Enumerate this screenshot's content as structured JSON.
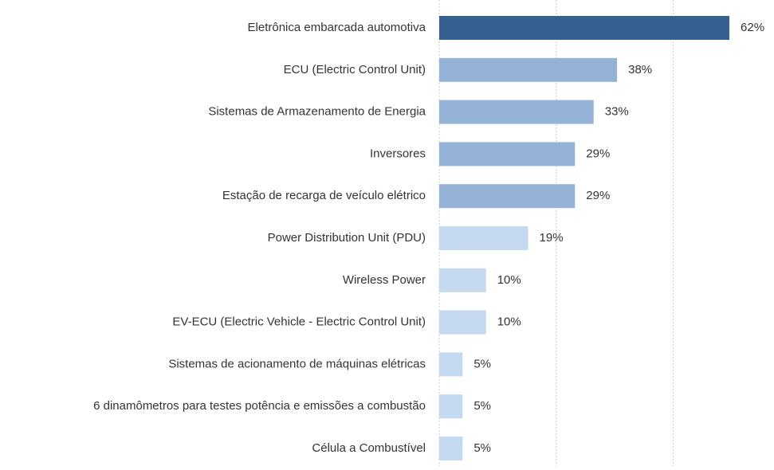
{
  "chart_data": {
    "type": "barh",
    "categories": [
      "Eletrônica embarcada automotiva",
      "ECU (Electric Control Unit)",
      "Sistemas de Armazenamento de Energia",
      "Inversores",
      "Estação de recarga de veículo elétrico",
      "Power Distribution Unit (PDU)",
      "Wireless Power",
      "EV-ECU (Electric Vehicle - Electric Control Unit)",
      "Sistemas de acionamento de máquinas elétricas",
      "6 dinamômetros para testes potência e emissões a combustão",
      "Célula a Combustível"
    ],
    "values": [
      62,
      38,
      33,
      29,
      29,
      19,
      10,
      10,
      5,
      5,
      5
    ],
    "value_labels": [
      "62%",
      "38%",
      "33%",
      "29%",
      "29%",
      "19%",
      "10%",
      "10%",
      "5%",
      "5%",
      "5%"
    ],
    "colors": [
      "#366092",
      "#95b3d7",
      "#95b3d7",
      "#95b3d7",
      "#95b3d7",
      "#c5d9f1",
      "#c5d9f1",
      "#c5d9f1",
      "#c5d9f1",
      "#c5d9f1",
      "#c5d9f1"
    ],
    "xlim": [
      0,
      70
    ],
    "xticks": [
      0,
      25,
      50
    ],
    "grid": true
  }
}
